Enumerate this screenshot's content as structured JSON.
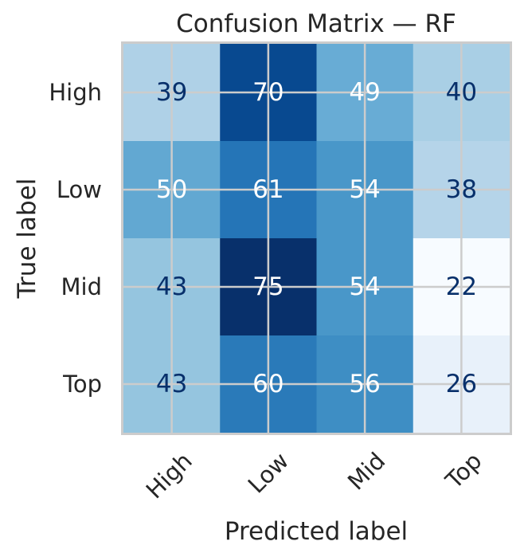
{
  "chart_data": {
    "type": "heatmap",
    "title": "Confusion Matrix — RF",
    "xlabel": "Predicted label",
    "ylabel": "True label",
    "x_categories": [
      "High",
      "Low",
      "Mid",
      "Top"
    ],
    "y_categories": [
      "High",
      "Low",
      "Mid",
      "Top"
    ],
    "values": [
      [
        39,
        70,
        49,
        40
      ],
      [
        50,
        61,
        54,
        38
      ],
      [
        43,
        75,
        54,
        22
      ],
      [
        43,
        60,
        56,
        26
      ]
    ],
    "value_range": [
      22,
      75
    ],
    "colormap": "Blues",
    "grid": true,
    "colors": {
      "cell_min": "#f7fbff",
      "cell_max": "#08306b",
      "text_light_cells": "#08306b",
      "text_dark_cells": "#ffffff",
      "grid": "#cccccc",
      "frame": "#cccccc",
      "text": "#262626"
    }
  }
}
